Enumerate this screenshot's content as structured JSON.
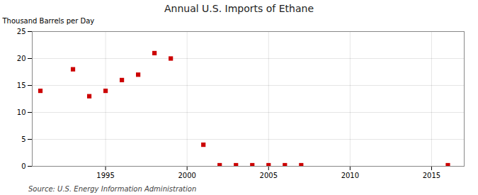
{
  "chart_data": {
    "type": "scatter",
    "title": "Annual U.S. Imports of Ethane",
    "ylabel": "Thousand Barrels per Day",
    "source": "Source: U.S. Energy Information Administration",
    "color": "#cc0000",
    "marker": "square",
    "x": [
      1991,
      1993,
      1994,
      1995,
      1996,
      1997,
      1998,
      1999,
      2001,
      2002,
      2003,
      2004,
      2005,
      2006,
      2007,
      2016
    ],
    "values": [
      14,
      18,
      13,
      14,
      16,
      17,
      21,
      20,
      4,
      0.2,
      0.2,
      0.2,
      0.2,
      0.2,
      0.2,
      0.2
    ],
    "xlim": [
      1990.5,
      2017
    ],
    "ylim": [
      0,
      25
    ],
    "xticks": [
      1995,
      2000,
      2005,
      2010,
      2015
    ],
    "yticks": [
      0,
      5,
      10,
      15,
      20,
      25
    ],
    "grid": true
  }
}
